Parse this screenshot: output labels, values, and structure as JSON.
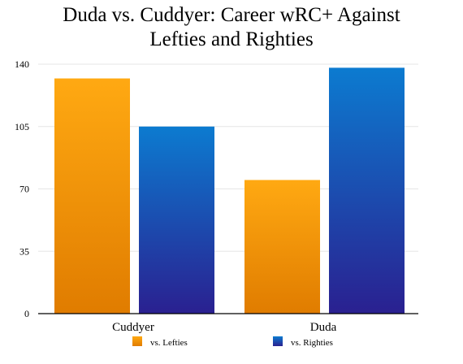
{
  "chart_data": {
    "type": "bar",
    "title_lines": [
      "Duda vs. Cuddyer: Career wRC+ Against",
      "Lefties and Righties"
    ],
    "categories": [
      "Cuddyer",
      "Duda"
    ],
    "series": [
      {
        "name": "vs. Lefties",
        "values": [
          132,
          75
        ],
        "color_top": "#ffa912",
        "color_bottom": "#e07c00"
      },
      {
        "name": "vs. Righties",
        "values": [
          105,
          138
        ],
        "color_top": "#0c7bd0",
        "color_bottom": "#2a2090"
      }
    ],
    "yticks": [
      "0",
      "35",
      "70",
      "105",
      "140"
    ],
    "ylim": [
      0,
      140
    ],
    "grid": true,
    "legend_position": "bottom"
  }
}
